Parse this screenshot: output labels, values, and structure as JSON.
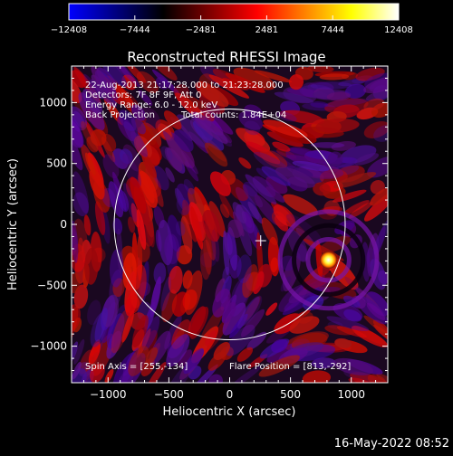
{
  "chart_data": {
    "type": "heatmap",
    "title": "Reconstructed RHESSI Image",
    "xlabel": "Heliocentric X (arcsec)",
    "ylabel": "Heliocentric Y (arcsec)",
    "xlim": [
      -1300,
      1300
    ],
    "ylim": [
      -1300,
      1300
    ],
    "x_ticks": [
      -1000,
      -500,
      0,
      500,
      1000
    ],
    "y_ticks": [
      -1000,
      -500,
      0,
      500,
      1000
    ],
    "x_tick_labels": [
      "−1000",
      "−500",
      "0",
      "500",
      "1000"
    ],
    "y_tick_labels": [
      "−1000",
      "−500",
      "0",
      "500",
      "1000"
    ],
    "colorbar": {
      "min": -12408,
      "max": 12408,
      "ticks": [
        -12408,
        -7444,
        -2481,
        2481,
        7444,
        12408
      ],
      "tick_labels": [
        "−12408",
        "−7444",
        "−2481",
        "2481",
        "7444",
        "12408"
      ],
      "colors": [
        "#0000ff",
        "#000080",
        "#000000",
        "#800000",
        "#ff0000",
        "#ff8000",
        "#ffff00",
        "#ffffff"
      ]
    },
    "annotations": [
      "22-Aug-2013 21:17:28.000 to 21:23:28.000",
      "Detectors: 7F 8F 9F, Att 0",
      "Energy Range: 6.0 - 12.0 keV",
      "Back Projection",
      "Total counts: 1.84E+04"
    ],
    "spin_axis_label": "Spin Axis = [255,-134]",
    "flare_position_label": "Flare Position = [813,-292]",
    "spin_axis": [
      255,
      -134
    ],
    "flare_position": [
      813,
      -292
    ],
    "solar_limb_radius": 950,
    "grid": false
  },
  "footer": {
    "timestamp": "16-May-2022 08:52"
  }
}
